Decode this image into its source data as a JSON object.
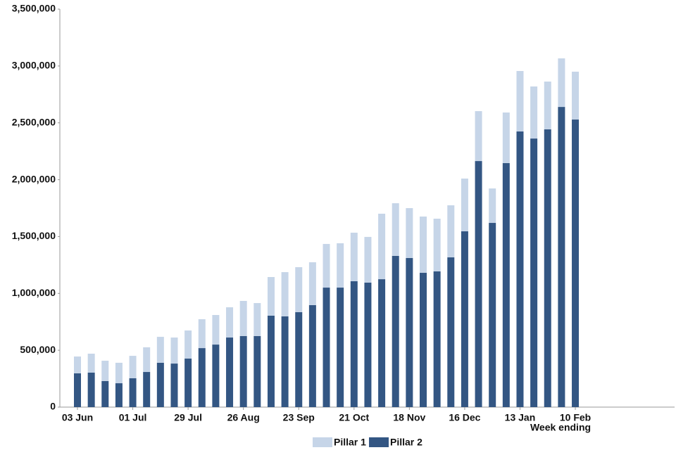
{
  "chart_data": {
    "type": "stacked_bar",
    "x_label": "Week ending",
    "categories": [
      "03 Jun",
      null,
      null,
      null,
      "01 Jul",
      null,
      null,
      null,
      "29 Jul",
      null,
      null,
      null,
      "26 Aug",
      null,
      null,
      null,
      "23 Sep",
      null,
      null,
      null,
      "21 Oct",
      null,
      null,
      null,
      "18 Nov",
      null,
      null,
      null,
      "16 Dec",
      null,
      null,
      null,
      "13 Jan",
      null,
      null,
      null,
      "10 Feb"
    ],
    "series": [
      {
        "name": "Pillar 1",
        "color": "#c6d5e8",
        "values": [
          148000,
          167000,
          179000,
          180000,
          197000,
          217000,
          228000,
          229000,
          247000,
          254000,
          260000,
          266000,
          309000,
          290000,
          340000,
          389000,
          396000,
          377000,
          384000,
          390000,
          427000,
          402000,
          576000,
          463000,
          439000,
          495000,
          463000,
          458000,
          464000,
          439000,
          303000,
          445000,
          532000,
          458000,
          420000,
          427000,
          421000
        ]
      },
      {
        "name": "Pillar 2",
        "color": "#335683",
        "values": [
          297000,
          303000,
          229000,
          210000,
          254000,
          309000,
          390000,
          383000,
          427000,
          519000,
          550000,
          612000,
          625000,
          625000,
          804000,
          798000,
          835000,
          897000,
          1051000,
          1051000,
          1107000,
          1095000,
          1125000,
          1330000,
          1311000,
          1181000,
          1194000,
          1317000,
          1546000,
          2164000,
          1620000,
          2146000,
          2424000,
          2362000,
          2443000,
          2640000,
          2529000
        ]
      }
    ],
    "ylim": [
      0,
      3500000
    ],
    "yticks": [
      0,
      {
        "value": 500000,
        "label": "500,000"
      },
      {
        "value": 1000000,
        "label": "1,000,000"
      },
      {
        "value": 1500000,
        "label": "1,500,000"
      },
      {
        "value": 2000000,
        "label": "2,000,000"
      },
      {
        "value": 2500000,
        "label": "2,500,000"
      },
      {
        "value": 3000000,
        "label": "3,000,000"
      },
      {
        "value": 3500000,
        "label": "3,500,000"
      }
    ],
    "legend": "bottom"
  }
}
